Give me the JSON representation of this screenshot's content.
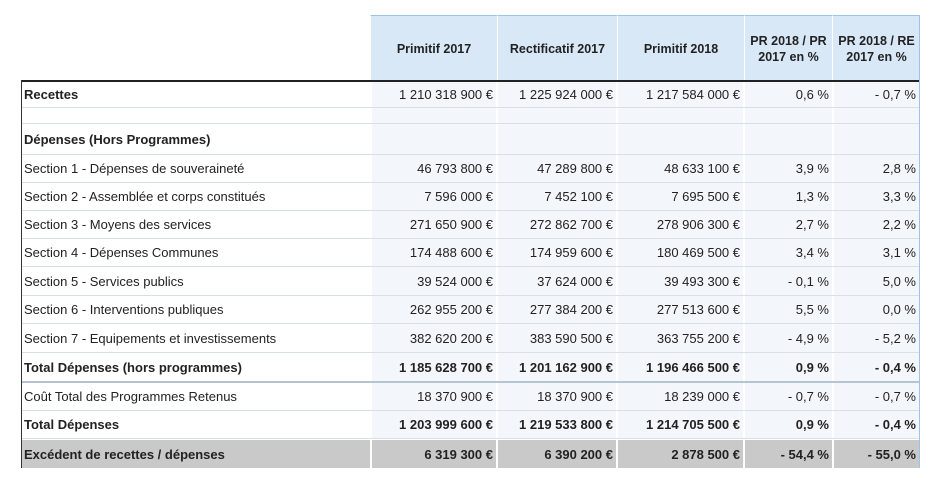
{
  "headers": [
    "Primitif 2017",
    "Rectificatif 2017",
    "Primitif 2018",
    "PR 2018 / PR 2017 en %",
    "PR 2018 / RE 2017 en %"
  ],
  "rows": [
    {
      "label": "Recettes",
      "values": [
        "1 210 318 900 €",
        "1 225 924 000 €",
        "1 217 584 000 €",
        "0,6 %",
        "- 0,7 %"
      ]
    },
    {
      "label": "",
      "values": [
        "",
        "",
        "",
        "",
        ""
      ]
    },
    {
      "label": "Dépenses (Hors Programmes)",
      "values": [
        "",
        "",
        "",
        "",
        ""
      ]
    },
    {
      "label": "Section 1 - Dépenses de souveraineté",
      "values": [
        "46 793 800 €",
        "47 289 800 €",
        "48 633 100 €",
        "3,9 %",
        "2,8 %"
      ]
    },
    {
      "label": "Section 2 - Assemblée et corps constitués",
      "values": [
        "7 596 000 €",
        "7 452 100 €",
        "7 695 500 €",
        "1,3 %",
        "3,3 %"
      ]
    },
    {
      "label": "Section 3 - Moyens des services",
      "values": [
        "271 650 900 €",
        "272 862 700 €",
        "278 906 300 €",
        "2,7 %",
        "2,2 %"
      ]
    },
    {
      "label": "Section 4 - Dépenses Communes",
      "values": [
        "174 488 600 €",
        "174 959 600 €",
        "180 469 500 €",
        "3,4 %",
        "3,1 %"
      ]
    },
    {
      "label": "Section 5 - Services publics",
      "values": [
        "39 524 000 €",
        "37 624 000 €",
        "39 493 300 €",
        "- 0,1 %",
        "5,0 %"
      ]
    },
    {
      "label": "Section 6 - Interventions publiques",
      "values": [
        "262 955 200 €",
        "277 384 200 €",
        "277 513 600 €",
        "5,5 %",
        "0,0 %"
      ]
    },
    {
      "label": "Section 7 - Equipements et investissements",
      "values": [
        "382 620 200 €",
        "383 590 500 €",
        "363 755 200 €",
        "- 4,9 %",
        "- 5,2 %"
      ]
    },
    {
      "label": "Total Dépenses (hors programmes)",
      "values": [
        "1 185 628 700 €",
        "1 201 162 900 €",
        "1 196 466 500 €",
        "0,9 %",
        "- 0,4 %"
      ]
    },
    {
      "label": "Coût Total des Programmes Retenus",
      "values": [
        "18 370 900 €",
        "18 370 900 €",
        "18 239 000 €",
        "- 0,7 %",
        "- 0,7 %"
      ]
    },
    {
      "label": "Total Dépenses",
      "values": [
        "1 203 999 600 €",
        "1 219 533 800 €",
        "1 214 705 500 €",
        "0,9 %",
        "- 0,4 %"
      ]
    },
    {
      "label": "Excédent de recettes / dépenses",
      "values": [
        "6 319 300 €",
        "6 390 200 €",
        "2 878 500 €",
        "- 54,4 %",
        "- 55,0 %"
      ]
    }
  ]
}
